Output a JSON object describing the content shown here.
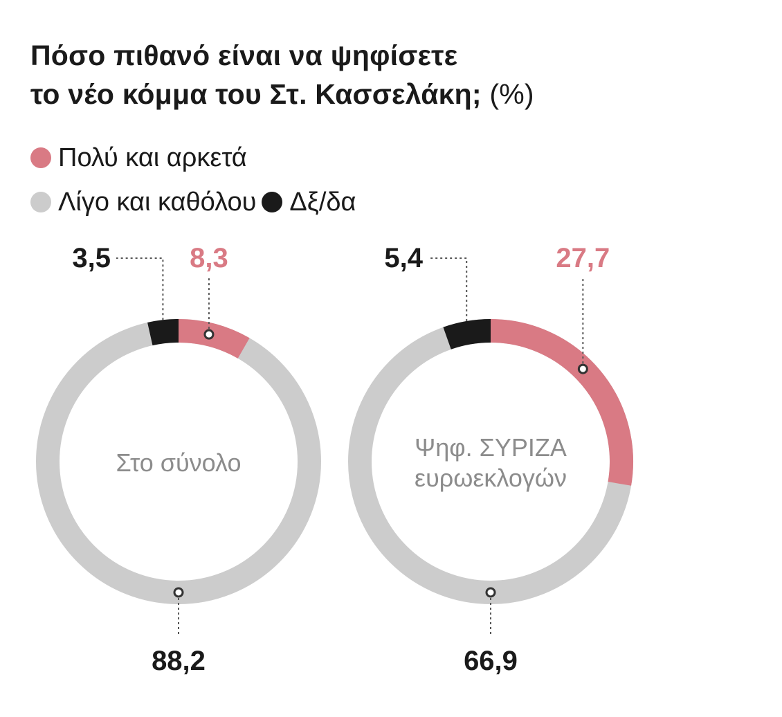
{
  "title_line1": "Πόσο πιθανό είναι να ψηφίσετε",
  "title_line2": "το νέο κόμμα του Στ. Κασσελάκη;",
  "title_unit": "(%)",
  "legend": [
    {
      "label": "Πολύ και αρκετά",
      "color": "#d97a84"
    },
    {
      "label": "Λίγο και καθόλου",
      "color": "#cccccc"
    },
    {
      "label": "Δξ/δα",
      "color": "#1a1a1a"
    }
  ],
  "chart_data": [
    {
      "type": "pie",
      "center_label": [
        "Στο σύνολο"
      ],
      "categories": [
        "Πολύ και αρκετά",
        "Λίγο και καθόλου",
        "Δξ/δα"
      ],
      "values": [
        8.3,
        88.2,
        3.5
      ],
      "value_labels": [
        "8,3",
        "88,2",
        "3,5"
      ]
    },
    {
      "type": "pie",
      "center_label": [
        "Ψηφ. ΣΥΡΙΖΑ",
        "ευρωεκλογών"
      ],
      "categories": [
        "Πολύ και αρκετά",
        "Λίγο και καθόλου",
        "Δξ/δα"
      ],
      "values": [
        27.7,
        66.9,
        5.4
      ],
      "value_labels": [
        "27,7",
        "66,9",
        "5,4"
      ]
    }
  ]
}
